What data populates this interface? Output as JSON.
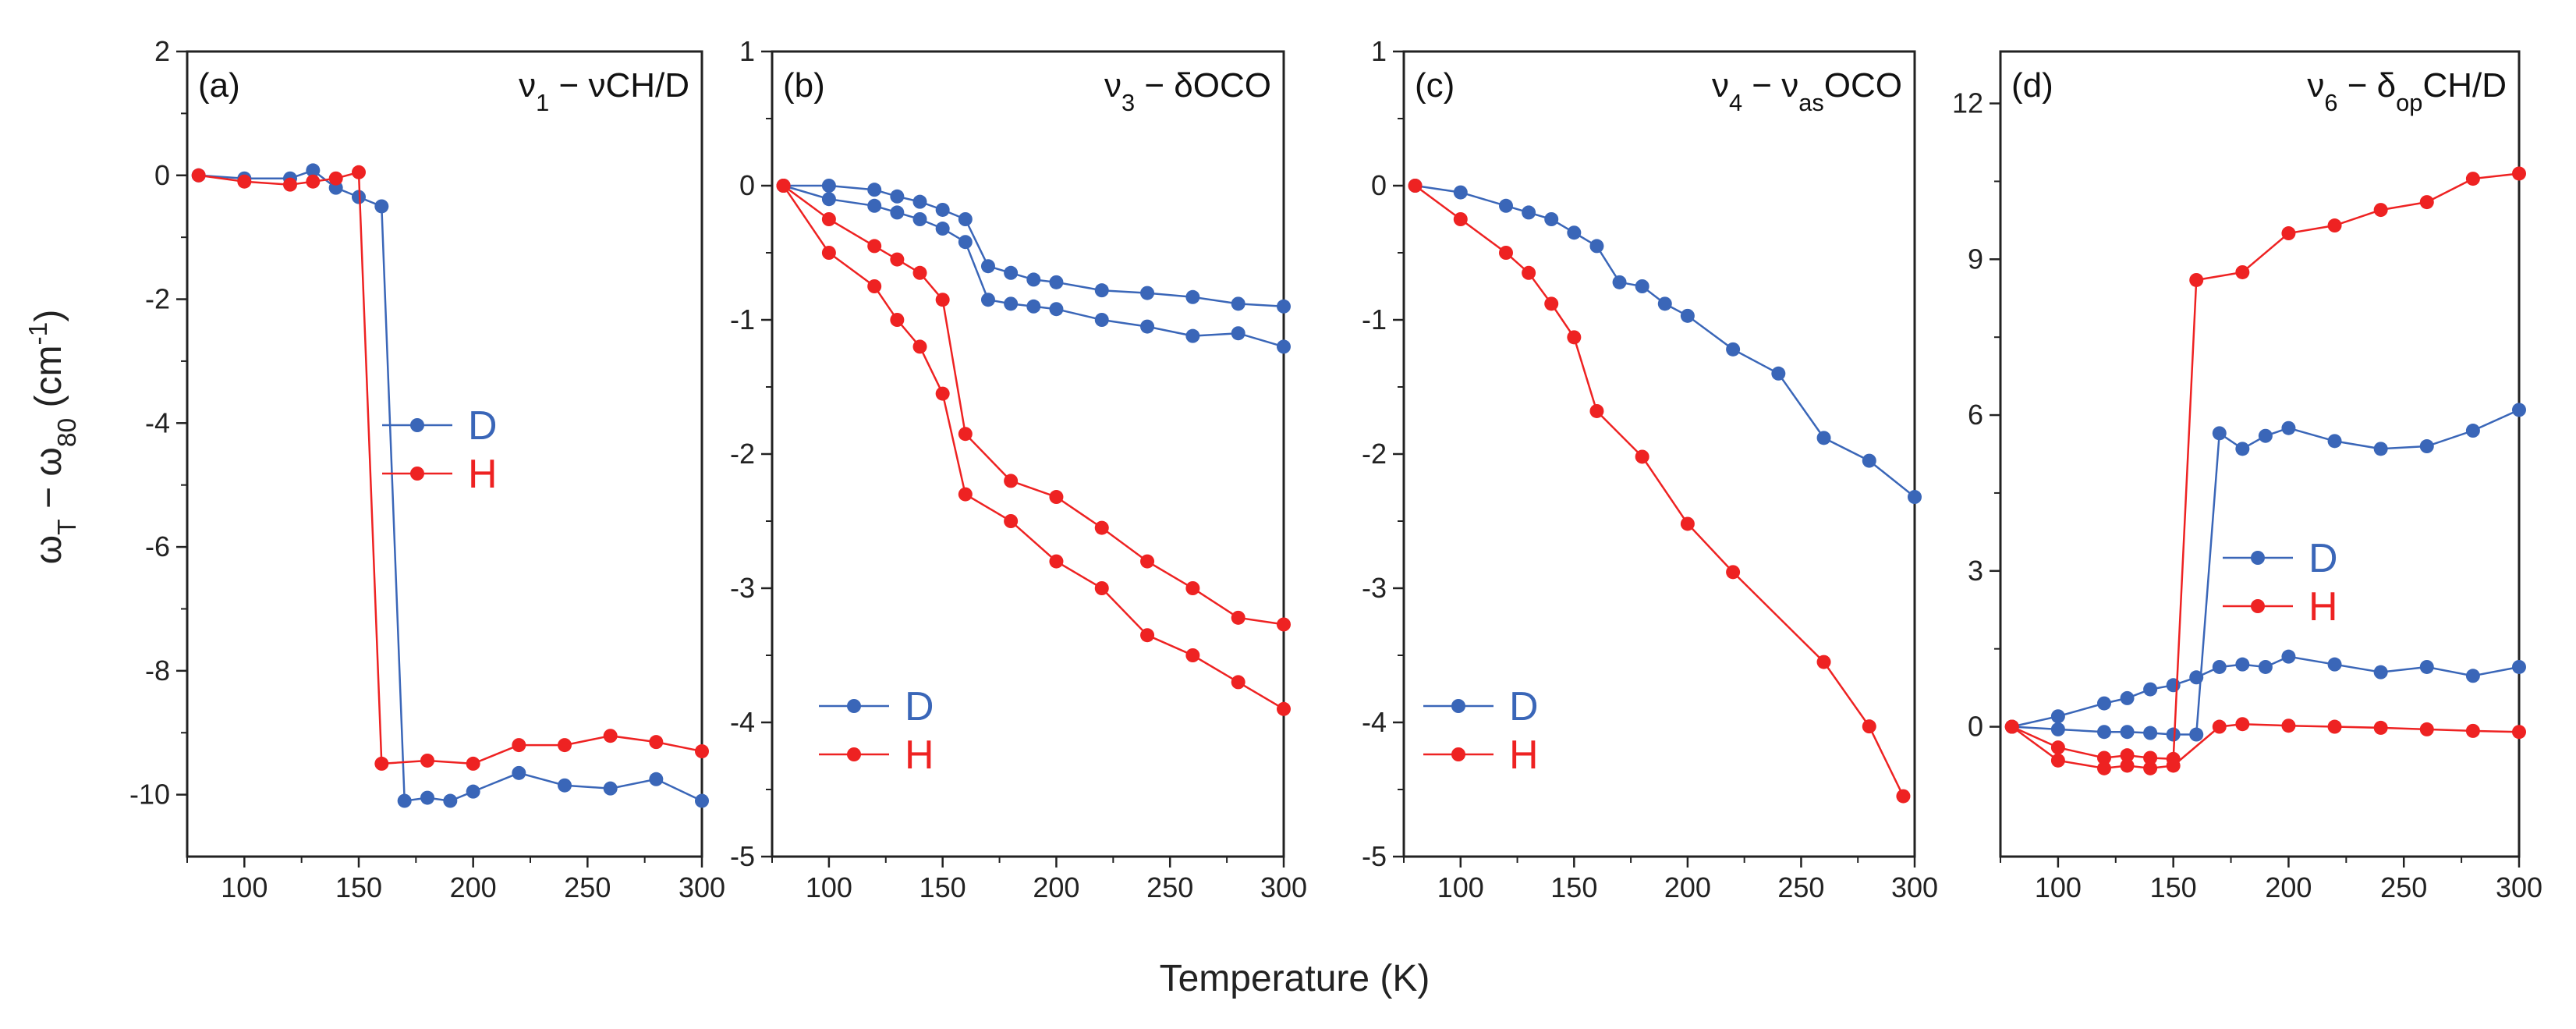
{
  "figure": {
    "xlabel": "Temperature (K)",
    "ylabel": "ωT − ω80 (cm⁻¹)",
    "ylabel_parts": {
      "omega": "ω",
      "sub_t": "T",
      "dash": " − ω",
      "sub_80": "80",
      "unit": " (cm",
      "sup": "-1",
      "close": ")"
    }
  },
  "colors": {
    "D": "#3a66b8",
    "H": "#ee2222"
  },
  "chart_data": [
    {
      "type": "line",
      "panel": "(a)",
      "title": "ν1 − νCH/D",
      "title_parts": {
        "nu": "ν",
        "sub": "1",
        "rest": " − νCH/D"
      },
      "xlim": [
        75,
        300
      ],
      "ylim": [
        -11,
        2
      ],
      "xticks": [
        100,
        150,
        200,
        250,
        300
      ],
      "yticks": [
        -10,
        -8,
        -6,
        -4,
        -2,
        0,
        2
      ],
      "legend": [
        "D",
        "H"
      ],
      "series": [
        {
          "name": "D",
          "points": [
            [
              80,
              0
            ],
            [
              100,
              -0.05
            ],
            [
              120,
              -0.05
            ],
            [
              130,
              0.08
            ],
            [
              140,
              -0.2
            ],
            [
              150,
              -0.35
            ],
            [
              160,
              -0.5
            ],
            [
              170,
              -10.1
            ],
            [
              180,
              -10.05
            ],
            [
              190,
              -10.1
            ],
            [
              200,
              -9.95
            ],
            [
              220,
              -9.65
            ],
            [
              240,
              -9.85
            ],
            [
              260,
              -9.9
            ],
            [
              280,
              -9.75
            ],
            [
              300,
              -10.1
            ]
          ]
        },
        {
          "name": "H",
          "points": [
            [
              80,
              0
            ],
            [
              100,
              -0.1
            ],
            [
              120,
              -0.15
            ],
            [
              130,
              -0.1
            ],
            [
              140,
              -0.05
            ],
            [
              150,
              0.05
            ],
            [
              160,
              -9.5
            ],
            [
              180,
              -9.45
            ],
            [
              200,
              -9.5
            ],
            [
              220,
              -9.2
            ],
            [
              240,
              -9.2
            ],
            [
              260,
              -9.05
            ],
            [
              280,
              -9.15
            ],
            [
              300,
              -9.3
            ]
          ]
        }
      ]
    },
    {
      "type": "line",
      "panel": "(b)",
      "title": "ν3 − δOCO",
      "title_parts": {
        "nu": "ν",
        "sub": "3",
        "rest": " − δOCO"
      },
      "xlim": [
        75,
        300
      ],
      "ylim": [
        -5,
        1
      ],
      "xticks": [
        100,
        150,
        200,
        250,
        300
      ],
      "yticks": [
        -5,
        -4,
        -3,
        -2,
        -1,
        0,
        1
      ],
      "legend": [
        "D",
        "H"
      ],
      "series": [
        {
          "name": "D",
          "points": [
            [
              80,
              0
            ],
            [
              100,
              0
            ],
            [
              120,
              -0.03
            ],
            [
              130,
              -0.08
            ],
            [
              140,
              -0.12
            ],
            [
              150,
              -0.18
            ],
            [
              160,
              -0.25
            ],
            [
              170,
              -0.6
            ],
            [
              180,
              -0.65
            ],
            [
              190,
              -0.7
            ],
            [
              200,
              -0.72
            ],
            [
              220,
              -0.78
            ],
            [
              240,
              -0.8
            ],
            [
              260,
              -0.83
            ],
            [
              280,
              -0.88
            ],
            [
              300,
              -0.9
            ]
          ]
        },
        {
          "name": "D",
          "points": [
            [
              80,
              0
            ],
            [
              100,
              -0.1
            ],
            [
              120,
              -0.15
            ],
            [
              130,
              -0.2
            ],
            [
              140,
              -0.25
            ],
            [
              150,
              -0.32
            ],
            [
              160,
              -0.42
            ],
            [
              170,
              -0.85
            ],
            [
              180,
              -0.88
            ],
            [
              190,
              -0.9
            ],
            [
              200,
              -0.92
            ],
            [
              220,
              -1.0
            ],
            [
              240,
              -1.05
            ],
            [
              260,
              -1.12
            ],
            [
              280,
              -1.1
            ],
            [
              300,
              -1.2
            ]
          ]
        },
        {
          "name": "H",
          "points": [
            [
              80,
              0
            ],
            [
              100,
              -0.25
            ],
            [
              120,
              -0.45
            ],
            [
              130,
              -0.55
            ],
            [
              140,
              -0.65
            ],
            [
              150,
              -0.85
            ],
            [
              160,
              -1.85
            ],
            [
              180,
              -2.2
            ],
            [
              200,
              -2.32
            ],
            [
              220,
              -2.55
            ],
            [
              240,
              -2.8
            ],
            [
              260,
              -3.0
            ],
            [
              280,
              -3.22
            ],
            [
              300,
              -3.27
            ]
          ]
        },
        {
          "name": "H",
          "points": [
            [
              80,
              0
            ],
            [
              100,
              -0.5
            ],
            [
              120,
              -0.75
            ],
            [
              130,
              -1.0
            ],
            [
              140,
              -1.2
            ],
            [
              150,
              -1.55
            ],
            [
              160,
              -2.3
            ],
            [
              180,
              -2.5
            ],
            [
              200,
              -2.8
            ],
            [
              220,
              -3.0
            ],
            [
              240,
              -3.35
            ],
            [
              260,
              -3.5
            ],
            [
              280,
              -3.7
            ],
            [
              300,
              -3.9
            ]
          ]
        }
      ]
    },
    {
      "type": "line",
      "panel": "(c)",
      "title": "ν4 − νasOCO",
      "title_parts": {
        "nu": "ν",
        "sub": "4",
        "mid": " − ν",
        "sub2": "as",
        "rest": "OCO"
      },
      "xlim": [
        75,
        300
      ],
      "ylim": [
        -5,
        1
      ],
      "xticks": [
        100,
        150,
        200,
        250,
        300
      ],
      "yticks": [
        -5,
        -4,
        -3,
        -2,
        -1,
        0,
        1
      ],
      "legend": [
        "D",
        "H"
      ],
      "series": [
        {
          "name": "D",
          "points": [
            [
              80,
              0
            ],
            [
              100,
              -0.05
            ],
            [
              120,
              -0.15
            ],
            [
              130,
              -0.2
            ],
            [
              140,
              -0.25
            ],
            [
              150,
              -0.35
            ],
            [
              160,
              -0.45
            ],
            [
              170,
              -0.72
            ],
            [
              180,
              -0.75
            ],
            [
              190,
              -0.88
            ],
            [
              200,
              -0.97
            ],
            [
              220,
              -1.22
            ],
            [
              240,
              -1.4
            ],
            [
              260,
              -1.88
            ],
            [
              280,
              -2.05
            ],
            [
              300,
              -2.32
            ]
          ]
        },
        {
          "name": "H",
          "points": [
            [
              80,
              0
            ],
            [
              100,
              -0.25
            ],
            [
              120,
              -0.5
            ],
            [
              130,
              -0.65
            ],
            [
              140,
              -0.88
            ],
            [
              150,
              -1.13
            ],
            [
              160,
              -1.68
            ],
            [
              180,
              -2.02
            ],
            [
              200,
              -2.52
            ],
            [
              220,
              -2.88
            ],
            [
              260,
              -3.55
            ],
            [
              280,
              -4.03
            ],
            [
              295,
              -4.55
            ]
          ]
        }
      ]
    },
    {
      "type": "line",
      "panel": "(d)",
      "title": "ν6 − δopCH/D",
      "title_parts": {
        "nu": "ν",
        "sub": "6",
        "mid": " − δ",
        "sub2": "op",
        "rest": "CH/D"
      },
      "xlim": [
        75,
        300
      ],
      "ylim": [
        -2.5,
        13
      ],
      "xticks": [
        100,
        150,
        200,
        250,
        300
      ],
      "yticks": [
        0,
        3,
        6,
        9,
        12
      ],
      "legend": [
        "D",
        "H"
      ],
      "series": [
        {
          "name": "D",
          "points": [
            [
              80,
              0
            ],
            [
              100,
              -0.05
            ],
            [
              120,
              -0.1
            ],
            [
              130,
              -0.1
            ],
            [
              140,
              -0.12
            ],
            [
              150,
              -0.15
            ],
            [
              160,
              -0.15
            ],
            [
              170,
              5.65
            ],
            [
              180,
              5.35
            ],
            [
              190,
              5.6
            ],
            [
              200,
              5.75
            ],
            [
              220,
              5.5
            ],
            [
              240,
              5.35
            ],
            [
              260,
              5.4
            ],
            [
              280,
              5.7
            ],
            [
              300,
              6.1
            ]
          ]
        },
        {
          "name": "D",
          "points": [
            [
              80,
              0
            ],
            [
              100,
              0.2
            ],
            [
              120,
              0.45
            ],
            [
              130,
              0.55
            ],
            [
              140,
              0.72
            ],
            [
              150,
              0.8
            ],
            [
              160,
              0.95
            ],
            [
              170,
              1.15
            ],
            [
              180,
              1.2
            ],
            [
              190,
              1.15
            ],
            [
              200,
              1.35
            ],
            [
              220,
              1.2
            ],
            [
              240,
              1.05
            ],
            [
              260,
              1.15
            ],
            [
              280,
              0.98
            ],
            [
              300,
              1.15
            ]
          ]
        },
        {
          "name": "H",
          "points": [
            [
              80,
              0
            ],
            [
              100,
              -0.4
            ],
            [
              120,
              -0.6
            ],
            [
              130,
              -0.55
            ],
            [
              140,
              -0.6
            ],
            [
              150,
              -0.62
            ],
            [
              160,
              8.6
            ],
            [
              180,
              8.75
            ],
            [
              200,
              9.5
            ],
            [
              220,
              9.65
            ],
            [
              240,
              9.95
            ],
            [
              260,
              10.1
            ],
            [
              280,
              10.55
            ],
            [
              300,
              10.65
            ]
          ]
        },
        {
          "name": "H",
          "points": [
            [
              80,
              0
            ],
            [
              100,
              -0.65
            ],
            [
              120,
              -0.8
            ],
            [
              130,
              -0.75
            ],
            [
              140,
              -0.8
            ],
            [
              150,
              -0.75
            ],
            [
              170,
              0
            ],
            [
              180,
              0.05
            ],
            [
              200,
              0.02
            ],
            [
              220,
              0
            ],
            [
              240,
              -0.02
            ],
            [
              260,
              -0.05
            ],
            [
              280,
              -0.08
            ],
            [
              300,
              -0.1
            ]
          ]
        }
      ]
    }
  ]
}
